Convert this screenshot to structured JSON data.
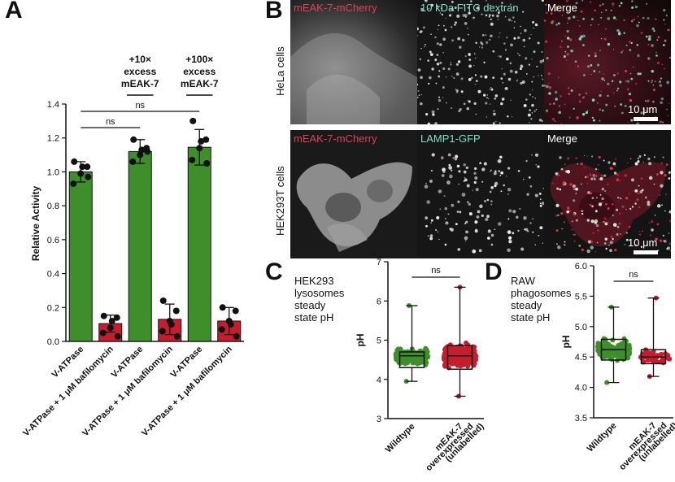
{
  "panels": {
    "A": "A",
    "B": "B",
    "C": "C",
    "D": "D"
  },
  "panel_b": {
    "row1_label": "HeLa cells",
    "row2_label": "HEK293T cells",
    "row1_channels": [
      "mEAK-7-mCherry",
      "10 kDa FITC dextran",
      "Merge"
    ],
    "row2_channels": [
      "mEAK-7-mCherry",
      "LAMP1-GFP",
      "Merge"
    ],
    "scale_bar": "10 μm",
    "colors": {
      "mcherry_label": "#e0405a",
      "gfp_label": "#7fe0c8",
      "merge_label": "#ffffff"
    }
  },
  "panel_c_note": [
    "HEK293",
    "lysosomes",
    "steady",
    "state pH"
  ],
  "panel_d_note": [
    "RAW",
    "phagosomes",
    "steady",
    "state pH"
  ],
  "chart_data": [
    {
      "id": "A",
      "type": "bar",
      "ylabel": "Relative Activity",
      "ylim": [
        0,
        1.4
      ],
      "yticks": [
        "0.0",
        "0.2",
        "0.4",
        "0.6",
        "0.8",
        "1.0",
        "1.2",
        "1.4"
      ],
      "categories": [
        "V-ATPase",
        "V-ATPase + 1 μM bafilomycin",
        "V-ATPase",
        "V-ATPase + 1 μM bafilomycin",
        "V-ATPase",
        "V-ATPase + 1 μM bafilomycin"
      ],
      "values": [
        1.0,
        0.105,
        1.12,
        0.13,
        1.145,
        0.12
      ],
      "errors": [
        0.06,
        0.05,
        0.07,
        0.09,
        0.105,
        0.08
      ],
      "bar_colors": [
        "#3e8f2c",
        "#c41e2e",
        "#3e8f2c",
        "#c41e2e",
        "#3e8f2c",
        "#c41e2e"
      ],
      "points": [
        [
          1.06,
          1.03,
          0.99,
          0.93,
          0.97,
          1.03
        ],
        [
          0.15,
          0.14,
          0.08,
          0.05,
          0.03,
          0.12
        ],
        [
          1.19,
          1.14,
          1.1,
          1.06,
          1.12,
          1.13
        ],
        [
          0.24,
          0.18,
          0.12,
          0.06,
          0.03,
          0.1
        ],
        [
          1.3,
          1.19,
          1.14,
          1.07,
          1.05,
          1.18
        ],
        [
          0.2,
          0.18,
          0.12,
          0.07,
          0.03,
          0.1
        ]
      ],
      "group_labels": [
        "+10×\nexcess\nmEAK-7",
        "+100×\nexcess\nmEAK-7"
      ],
      "annotations": [
        "ns",
        "ns"
      ]
    },
    {
      "id": "C",
      "type": "box",
      "ylabel": "pH",
      "ylim": [
        3,
        7
      ],
      "yticks": [
        "3",
        "4",
        "5",
        "6",
        "7"
      ],
      "categories": [
        "Wildtype",
        "mEAK-7\noverexpressed\n(unlabelled)"
      ],
      "box_stats": [
        {
          "min": 3.95,
          "q1": 4.3,
          "median": 4.6,
          "q3": 4.7,
          "max": 5.88
        },
        {
          "min": 3.57,
          "q1": 4.26,
          "median": 4.6,
          "q3": 4.86,
          "max": 6.35
        }
      ],
      "colors": [
        "#3e8f2c",
        "#c41e2e"
      ],
      "annotation": "ns"
    },
    {
      "id": "D",
      "type": "box",
      "ylabel": "pH",
      "ylim": [
        3.5,
        6.0
      ],
      "yticks": [
        "3.5",
        "4.0",
        "4.5",
        "5.0",
        "5.5",
        "6.0"
      ],
      "categories": [
        "Wildtype",
        "mEAK-7\noverexpressed\n(unlabelled)"
      ],
      "box_stats": [
        {
          "min": 4.08,
          "q1": 4.45,
          "median": 4.62,
          "q3": 4.79,
          "max": 5.32
        },
        {
          "min": 4.18,
          "q1": 4.39,
          "median": 4.5,
          "q3": 4.62,
          "max": 5.47
        }
      ],
      "colors": [
        "#3e8f2c",
        "#c41e2e"
      ],
      "annotation": "ns"
    }
  ]
}
